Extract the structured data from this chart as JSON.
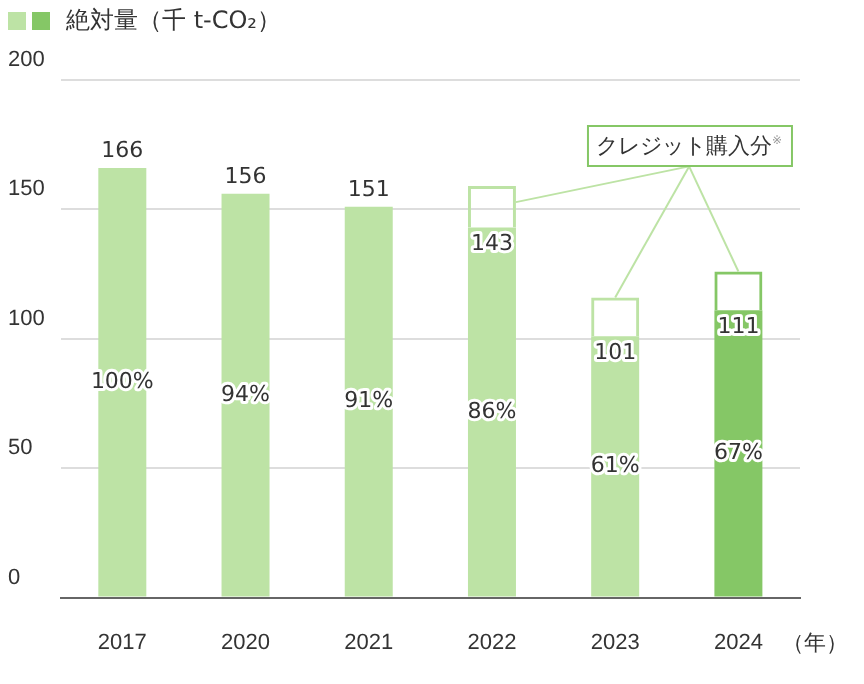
{
  "chart_data": {
    "type": "bar",
    "stacked": true,
    "categories": [
      "2017",
      "2020",
      "2021",
      "2022",
      "2023",
      "2024"
    ],
    "xlabel": "（年）",
    "series": [
      {
        "name": "絶対量（千 t-CO₂）",
        "colors": [
          "#bde3a5",
          "#bde3a5",
          "#bde3a5",
          "#bde3a5",
          "#bde3a5",
          "#85c766"
        ],
        "values": [
          166,
          156,
          151,
          143,
          101,
          111
        ],
        "value_labels": [
          "166",
          "156",
          "151",
          "143",
          "101",
          "111"
        ]
      },
      {
        "colors": [
          "#bde3a5",
          "#bde3a5",
          "#bde3a5",
          "#bde3a5",
          "#bde3a5",
          "#85c766"
        ],
        "values": [
          null,
          null,
          null,
          16,
          15,
          15
        ]
      }
    ],
    "ylim": [
      0,
      200
    ],
    "yticks": [
      0,
      50,
      100,
      150,
      200
    ],
    "grid": "y",
    "legend": "top left",
    "annotations": [
      {
        "text": "クレジット購入分$^{※}$",
        "x": "2023",
        "y": 116
      },
      "100%",
      "94%",
      "91%",
      "86%",
      "61%",
      "67%"
    ]
  }
}
